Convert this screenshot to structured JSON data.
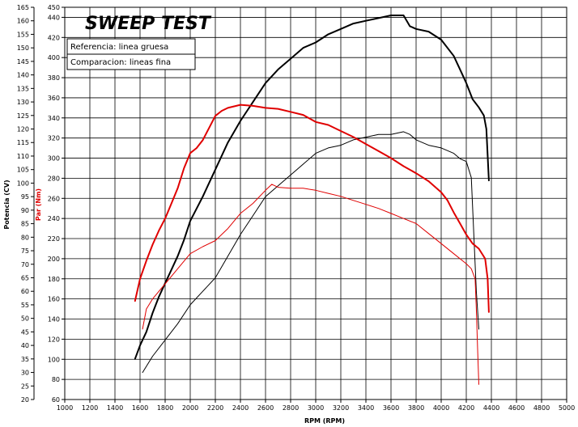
{
  "chart_data": {
    "type": "line",
    "title": "SWEEP TEST",
    "xlabel": "RPM (RPM)",
    "ylabel_power": "Potencia (CV)",
    "ylabel_torque": "Par (Nm)",
    "xlim": [
      1000,
      5000
    ],
    "x_ticks": [
      1000,
      1200,
      1400,
      1600,
      1800,
      2000,
      2200,
      2400,
      2600,
      2800,
      3000,
      3200,
      3400,
      3600,
      3800,
      4000,
      4200,
      4400,
      4600,
      4800,
      5000
    ],
    "ylim_power": [
      20,
      165
    ],
    "power_ticks": [
      20,
      25,
      30,
      35,
      40,
      45,
      50,
      55,
      60,
      65,
      70,
      75,
      80,
      85,
      90,
      95,
      100,
      105,
      110,
      115,
      120,
      125,
      130,
      135,
      140,
      145,
      150,
      155,
      160,
      165
    ],
    "ylim_torque": [
      60,
      450
    ],
    "torque_ticks": [
      60,
      80,
      100,
      120,
      140,
      160,
      180,
      200,
      220,
      240,
      260,
      280,
      300,
      320,
      340,
      360,
      380,
      400,
      420,
      440,
      450
    ],
    "legend": [
      {
        "label": "Referencia: linea gruesa"
      },
      {
        "label": "Comparacion: lineas fina"
      }
    ],
    "grid": true,
    "series": [
      {
        "key": "power_ref",
        "axis": "power",
        "color": "#000000",
        "width": 2,
        "x": [
          1560,
          1600,
          1650,
          1700,
          1750,
          1800,
          1850,
          1900,
          1950,
          2000,
          2100,
          2200,
          2300,
          2400,
          2500,
          2600,
          2700,
          2800,
          2900,
          3000,
          3100,
          3200,
          3300,
          3400,
          3500,
          3600,
          3700,
          3750,
          3800,
          3900,
          4000,
          4100,
          4150,
          4200,
          4250,
          4300,
          4340,
          4360,
          4380
        ],
        "y": [
          35,
          40,
          45,
          52,
          58,
          63,
          68,
          73,
          79,
          86,
          95,
          105,
          115,
          123,
          130,
          137,
          142,
          146,
          150,
          152,
          155,
          157,
          159,
          160,
          161,
          162,
          162,
          158,
          157,
          156,
          153,
          147,
          142,
          137,
          131,
          128,
          125,
          120,
          101
        ]
      },
      {
        "key": "power_cmp",
        "axis": "power",
        "color": "#000000",
        "width": 1,
        "x": [
          1620,
          1700,
          1800,
          1900,
          2000,
          2100,
          2200,
          2300,
          2400,
          2500,
          2600,
          2700,
          2800,
          2900,
          3000,
          3100,
          3200,
          3300,
          3400,
          3500,
          3600,
          3700,
          3750,
          3800,
          3900,
          4000,
          4100,
          4150,
          4200,
          4240,
          4280,
          4300
        ],
        "y": [
          30,
          36,
          42,
          48,
          55,
          60,
          65,
          73,
          81,
          88,
          95,
          99,
          103,
          107,
          111,
          113,
          114,
          116,
          117,
          118,
          118,
          119,
          118,
          116,
          114,
          113,
          111,
          109,
          108,
          102,
          60,
          46
        ]
      },
      {
        "key": "torque_ref",
        "axis": "torque",
        "color": "#e00000",
        "width": 2,
        "x": [
          1560,
          1600,
          1650,
          1700,
          1750,
          1800,
          1850,
          1900,
          1950,
          2000,
          2050,
          2100,
          2150,
          2200,
          2250,
          2300,
          2400,
          2500,
          2600,
          2700,
          2800,
          2900,
          3000,
          3100,
          3200,
          3300,
          3400,
          3500,
          3600,
          3700,
          3800,
          3900,
          4000,
          4050,
          4100,
          4150,
          4200,
          4250,
          4300,
          4350,
          4370,
          4380
        ],
        "y": [
          158,
          180,
          198,
          214,
          228,
          240,
          255,
          270,
          290,
          305,
          310,
          318,
          330,
          342,
          347,
          350,
          353,
          352,
          350,
          349,
          346,
          343,
          336,
          333,
          327,
          321,
          314,
          307,
          300,
          292,
          285,
          277,
          266,
          258,
          246,
          235,
          224,
          215,
          210,
          200,
          180,
          147
        ]
      },
      {
        "key": "torque_cmp",
        "axis": "torque",
        "color": "#e00000",
        "width": 1,
        "x": [
          1620,
          1650,
          1700,
          1800,
          1900,
          2000,
          2100,
          2200,
          2300,
          2400,
          2500,
          2600,
          2650,
          2700,
          2800,
          2900,
          3000,
          3100,
          3200,
          3300,
          3400,
          3500,
          3600,
          3700,
          3800,
          3900,
          4000,
          4100,
          4200,
          4240,
          4270,
          4280,
          4290,
          4300
        ],
        "y": [
          130,
          150,
          160,
          175,
          190,
          205,
          212,
          218,
          230,
          245,
          255,
          268,
          274,
          271,
          270,
          270,
          268,
          265,
          262,
          258,
          254,
          250,
          245,
          240,
          235,
          225,
          215,
          205,
          195,
          190,
          180,
          150,
          110,
          75
        ]
      }
    ]
  }
}
